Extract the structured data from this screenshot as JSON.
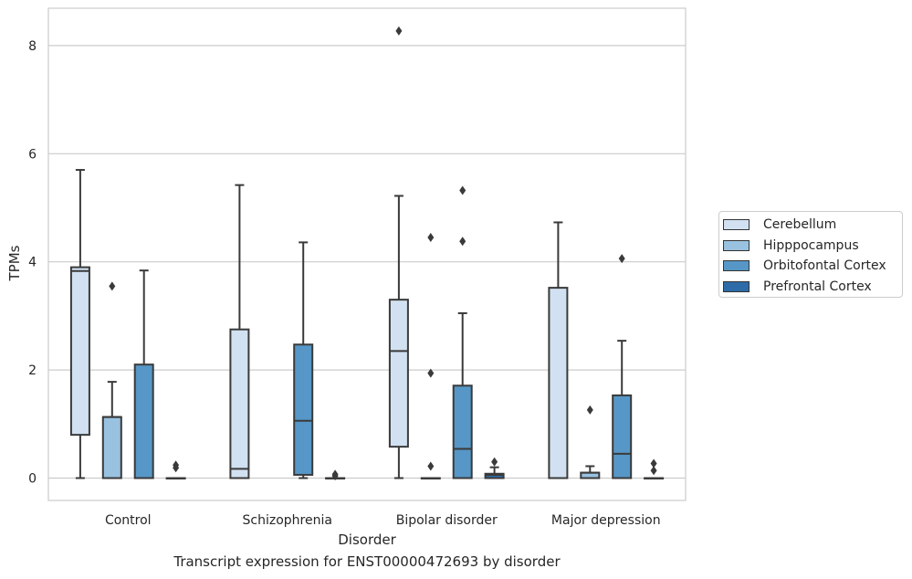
{
  "chart_data": {
    "type": "box",
    "title": "",
    "caption": "Transcript expression for ENST00000472693 by disorder",
    "xlabel": "Disorder",
    "ylabel": "TPMs",
    "ylim": [
      -0.4,
      8.7
    ],
    "yticks": [
      0,
      2,
      4,
      6,
      8
    ],
    "grid": true,
    "legend_position": "right",
    "categories": [
      "Control",
      "Schizophrenia",
      "Bipolar disorder",
      "Major depression"
    ],
    "series": [
      {
        "name": "Cerebellum",
        "color": "#d1e1f1",
        "boxes": [
          {
            "q1": 0.8,
            "median": 3.83,
            "q3": 3.9,
            "whisker_low": 0.0,
            "whisker_high": 5.7,
            "outliers": []
          },
          {
            "q1": 0.0,
            "median": 0.17,
            "q3": 2.75,
            "whisker_low": 0.0,
            "whisker_high": 5.42,
            "outliers": []
          },
          {
            "q1": 0.58,
            "median": 2.35,
            "q3": 3.3,
            "whisker_low": 0.0,
            "whisker_high": 5.22,
            "outliers": [
              8.27
            ]
          },
          {
            "q1": 0.0,
            "median": 0.0,
            "q3": 3.52,
            "whisker_low": 0.0,
            "whisker_high": 4.73,
            "outliers": []
          }
        ]
      },
      {
        "name": "Hipppocampus",
        "color": "#99c2e0",
        "boxes": [
          {
            "q1": 0.0,
            "median": 1.13,
            "q3": 1.13,
            "whisker_low": 0.0,
            "whisker_high": 1.78,
            "outliers": [
              3.55
            ]
          },
          null,
          {
            "q1": 0.0,
            "median": 0.0,
            "q3": 0.0,
            "whisker_low": 0.0,
            "whisker_high": 0.0,
            "outliers": [
              1.94,
              4.45,
              0.22
            ]
          },
          {
            "q1": 0.0,
            "median": 0.1,
            "q3": 0.1,
            "whisker_low": 0.0,
            "whisker_high": 0.22,
            "outliers": [
              1.26
            ]
          }
        ]
      },
      {
        "name": "Orbitofontal Cortex",
        "color": "#5697c7",
        "boxes": [
          {
            "q1": 0.0,
            "median": 0.0,
            "q3": 2.1,
            "whisker_low": 0.0,
            "whisker_high": 3.84,
            "outliers": []
          },
          {
            "q1": 0.06,
            "median": 1.06,
            "q3": 2.47,
            "whisker_low": 0.0,
            "whisker_high": 4.36,
            "outliers": []
          },
          {
            "q1": 0.0,
            "median": 0.54,
            "q3": 1.71,
            "whisker_low": 0.0,
            "whisker_high": 3.05,
            "outliers": [
              5.32,
              4.38
            ]
          },
          {
            "q1": 0.0,
            "median": 0.45,
            "q3": 1.53,
            "whisker_low": 0.0,
            "whisker_high": 2.54,
            "outliers": [
              4.06
            ]
          }
        ]
      },
      {
        "name": "Prefrontal Cortex",
        "color": "#2d6ca8",
        "boxes": [
          {
            "q1": 0.0,
            "median": 0.0,
            "q3": 0.0,
            "whisker_low": 0.0,
            "whisker_high": 0.0,
            "outliers": [
              0.24,
              0.19
            ]
          },
          {
            "q1": 0.0,
            "median": 0.0,
            "q3": 0.0,
            "whisker_low": 0.0,
            "whisker_high": 0.0,
            "outliers": [
              0.07,
              0.04
            ]
          },
          {
            "q1": 0.0,
            "median": 0.06,
            "q3": 0.08,
            "whisker_low": 0.0,
            "whisker_high": 0.2,
            "outliers": [
              0.3
            ]
          },
          {
            "q1": 0.0,
            "median": 0.0,
            "q3": 0.0,
            "whisker_low": 0.0,
            "whisker_high": 0.0,
            "outliers": [
              0.27,
              0.14
            ]
          }
        ]
      }
    ]
  }
}
